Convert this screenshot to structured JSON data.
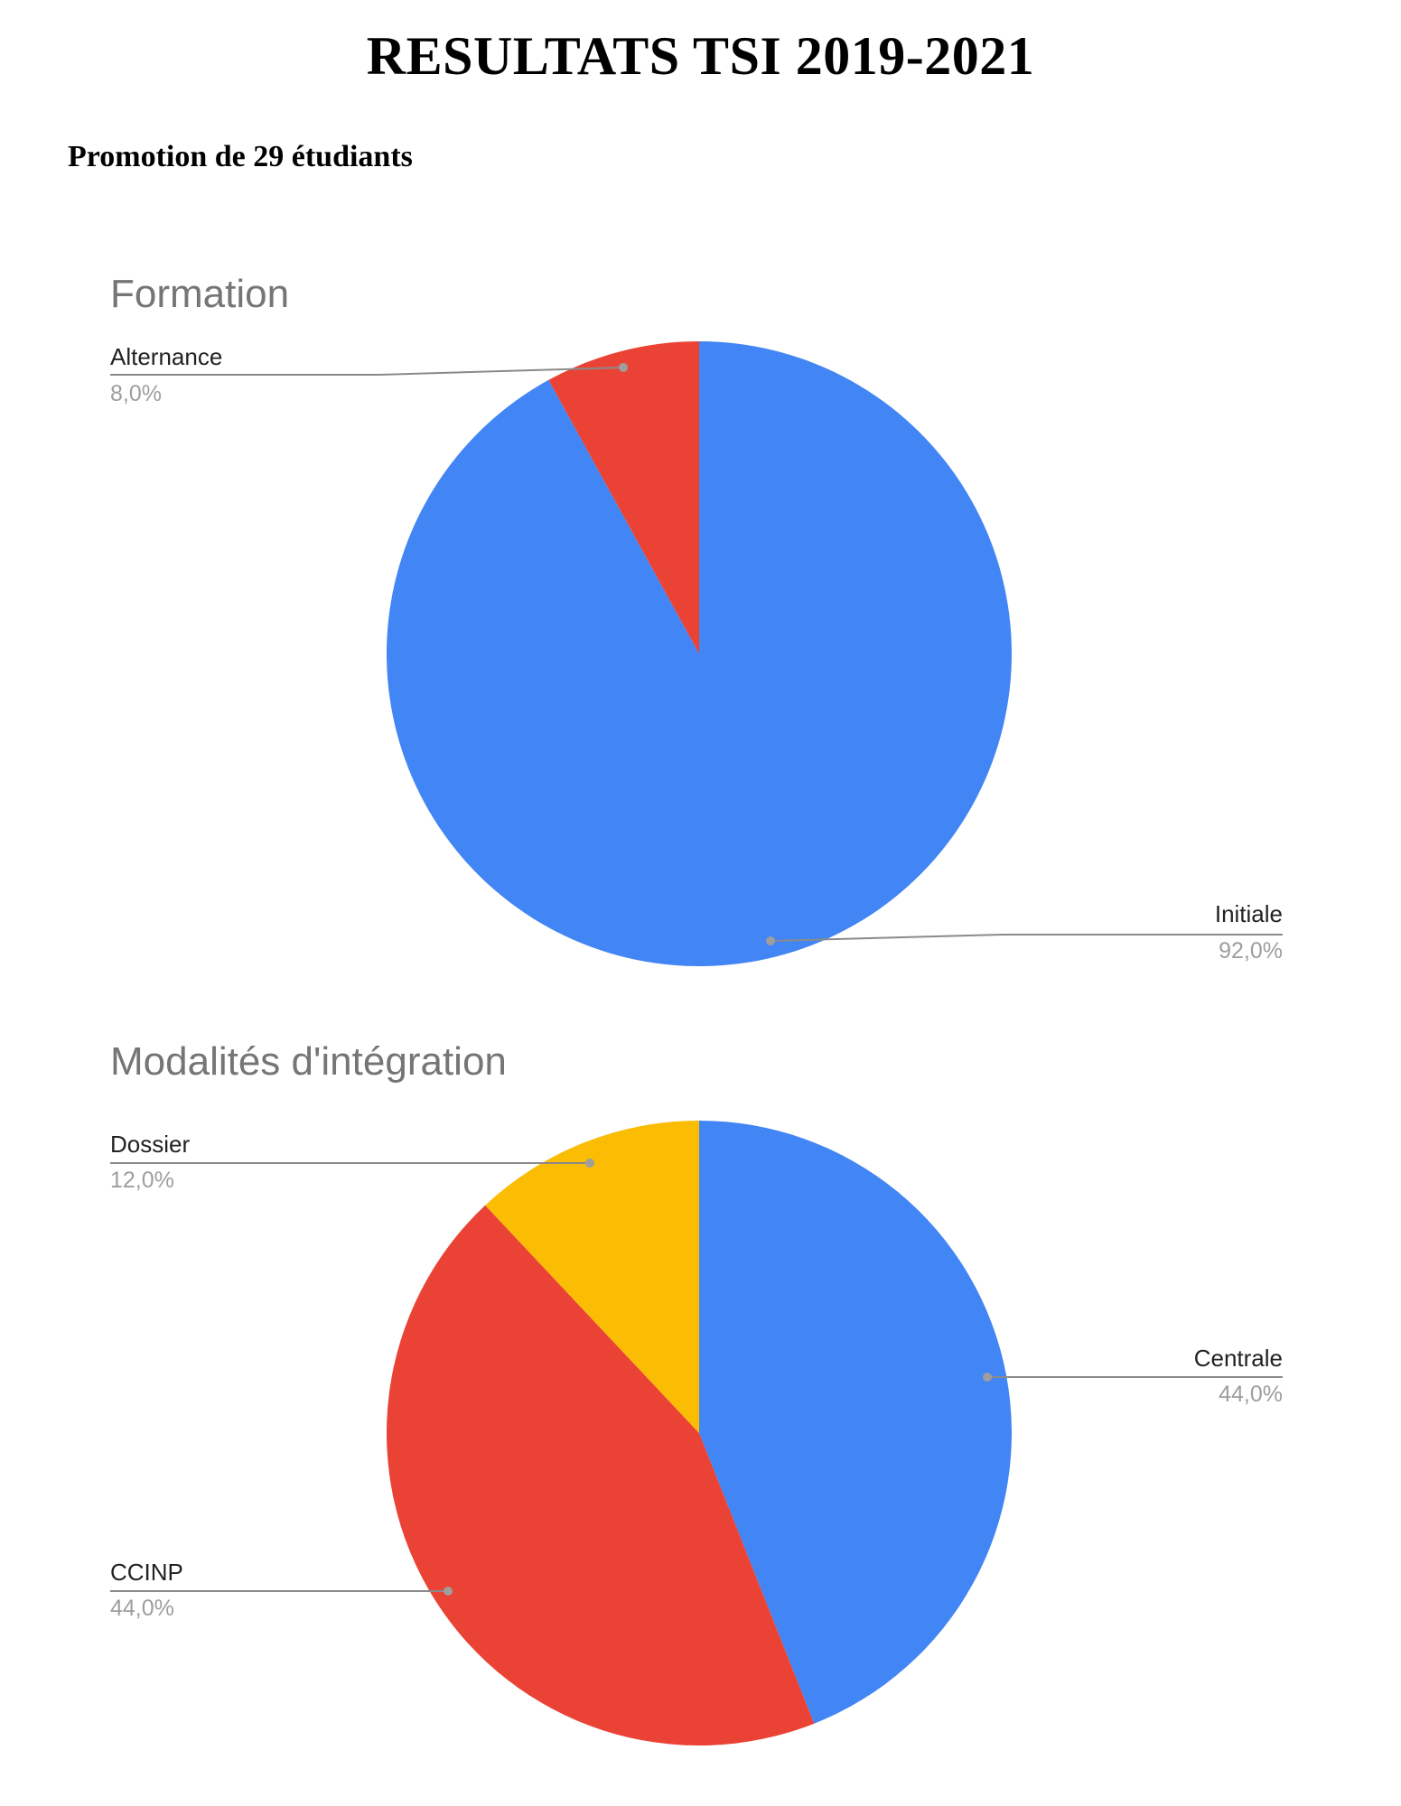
{
  "document": {
    "title": "RESULTATS TSI 2019-2021",
    "subtitle": "Promotion de 29 étudiants"
  },
  "chart_data": [
    {
      "type": "pie",
      "title": "Formation",
      "slices": [
        {
          "label": "Initiale",
          "value": 92.0,
          "display": "92,0%",
          "color": "#4285F4"
        },
        {
          "label": "Alternance",
          "value": 8.0,
          "display": "8,0%",
          "color": "#EA4335"
        }
      ],
      "legend": "leader-line labels"
    },
    {
      "type": "pie",
      "title": "Modalités d'intégration",
      "slices": [
        {
          "label": "Centrale",
          "value": 44.0,
          "display": "44,0%",
          "color": "#4285F4"
        },
        {
          "label": "CCINP",
          "value": 44.0,
          "display": "44,0%",
          "color": "#EA4335"
        },
        {
          "label": "Dossier",
          "value": 12.0,
          "display": "12,0%",
          "color": "#FBBC04"
        }
      ],
      "legend": "leader-line labels"
    }
  ]
}
